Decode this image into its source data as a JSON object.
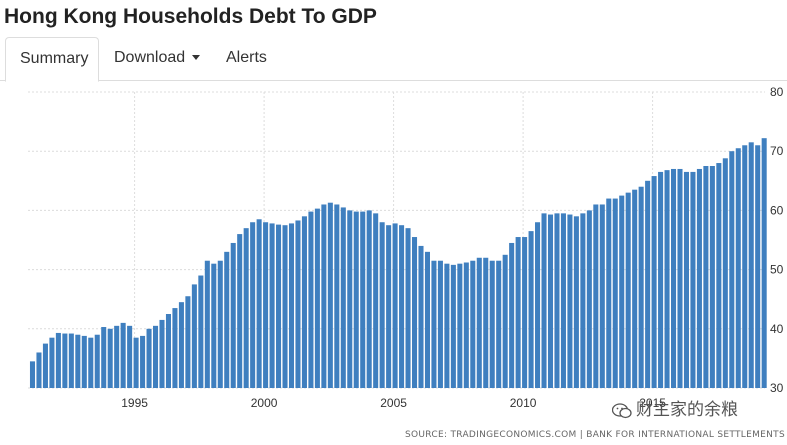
{
  "header": {
    "title": "Hong Kong Households Debt To GDP"
  },
  "tabs": [
    {
      "label": "Summary",
      "active": true
    },
    {
      "label": "Download",
      "icon": "caret-down-icon"
    },
    {
      "label": "Alerts"
    }
  ],
  "source_text": "SOURCE: TRADINGECONOMICS.COM | BANK FOR INTERNATIONAL SETTLEMENTS",
  "watermark": {
    "text": "财主家的余粮",
    "icon": "wechat-icon"
  },
  "colors": {
    "bar": "#3f7fbf",
    "grid": "#dcdcdc",
    "text": "#333333"
  },
  "chart_data": {
    "type": "bar",
    "title": "Hong Kong Households Debt To GDP",
    "x_start": 1991.0,
    "x_step": 0.25,
    "ylim": [
      30,
      80
    ],
    "yticks": [
      30,
      40,
      50,
      60,
      70,
      80
    ],
    "xticks": [
      1995,
      2000,
      2005,
      2010,
      2015
    ],
    "grid": true,
    "y_axis_side": "right",
    "values": [
      34.5,
      36.0,
      37.5,
      38.5,
      39.3,
      39.2,
      39.2,
      39.0,
      38.8,
      38.5,
      39.0,
      40.3,
      40.0,
      40.5,
      41.0,
      40.5,
      38.5,
      38.8,
      40.0,
      40.5,
      41.5,
      42.5,
      43.5,
      44.5,
      45.5,
      47.5,
      49.0,
      51.5,
      51.0,
      51.5,
      53.0,
      54.5,
      56.0,
      57.0,
      58.0,
      58.5,
      58.0,
      57.8,
      57.6,
      57.5,
      57.8,
      58.3,
      59.0,
      59.8,
      60.3,
      61.0,
      61.3,
      61.0,
      60.5,
      60.0,
      59.8,
      59.8,
      60.0,
      59.5,
      58.0,
      57.5,
      57.8,
      57.5,
      57.0,
      55.5,
      54.0,
      53.0,
      51.5,
      51.5,
      51.0,
      50.8,
      51.0,
      51.2,
      51.5,
      52.0,
      52.0,
      51.5,
      51.5,
      52.5,
      54.5,
      55.5,
      55.5,
      56.5,
      58.0,
      59.5,
      59.3,
      59.5,
      59.5,
      59.3,
      59.0,
      59.5,
      60.0,
      61.0,
      61.0,
      62.0,
      62.0,
      62.5,
      63.0,
      63.5,
      64.0,
      65.0,
      65.8,
      66.5,
      66.8,
      67.0,
      67.0,
      66.5,
      66.5,
      67.0,
      67.5,
      67.5,
      68.0,
      68.8,
      70.0,
      70.5,
      71.0,
      71.5,
      71.0,
      72.2
    ]
  }
}
